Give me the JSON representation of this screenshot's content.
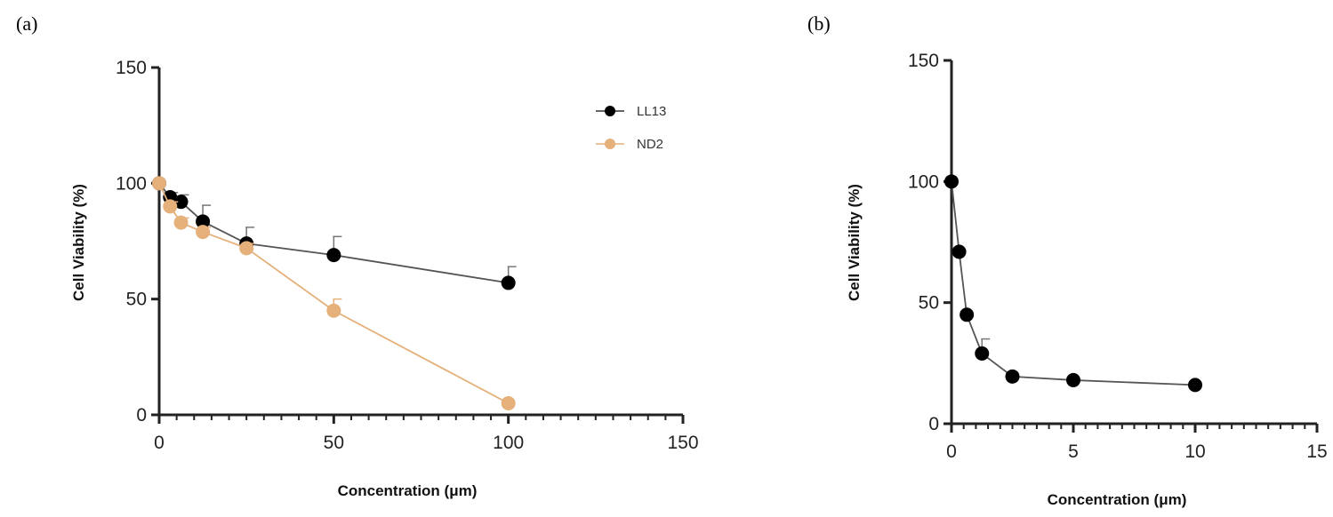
{
  "chart_data": [
    {
      "type": "line",
      "panel_label": "(a)",
      "xlabel": "Concentration (μm)",
      "ylabel": "Cell Viability (%)",
      "xlim": [
        0,
        150
      ],
      "ylim": [
        0,
        150
      ],
      "xticks": [
        0,
        50,
        100,
        150
      ],
      "yticks": [
        0,
        50,
        100,
        150
      ],
      "grid": false,
      "legend_position": "top-right",
      "series": [
        {
          "name": "LL13",
          "color": "#000000",
          "x": [
            0,
            3.125,
            6.25,
            12.5,
            25,
            50,
            100
          ],
          "y": [
            100,
            94,
            92,
            83.5,
            74,
            69,
            57
          ],
          "error": [
            0,
            2,
            3,
            7,
            7,
            8,
            7
          ]
        },
        {
          "name": "ND2",
          "color": "#e5b07a",
          "x": [
            0,
            3.125,
            6.25,
            12.5,
            25,
            50,
            100
          ],
          "y": [
            100,
            90,
            83,
            79,
            72,
            45,
            5
          ],
          "error": [
            0,
            2,
            2,
            2,
            2,
            5,
            0
          ]
        }
      ]
    },
    {
      "type": "line",
      "panel_label": "(b)",
      "xlabel": "Concentration (μm)",
      "ylabel": "Cell Viability (%)",
      "xlim": [
        0,
        15
      ],
      "ylim": [
        0,
        150
      ],
      "xticks": [
        0,
        5,
        10,
        15
      ],
      "yticks": [
        0,
        50,
        100,
        150
      ],
      "grid": false,
      "legend_position": "none",
      "series": [
        {
          "color": "#000000",
          "x": [
            0,
            0.3125,
            0.625,
            1.25,
            2.5,
            5,
            10
          ],
          "y": [
            100,
            71,
            45,
            29,
            19.5,
            18,
            16
          ],
          "error": [
            0,
            0,
            0,
            6,
            0,
            0,
            0
          ]
        }
      ]
    }
  ]
}
